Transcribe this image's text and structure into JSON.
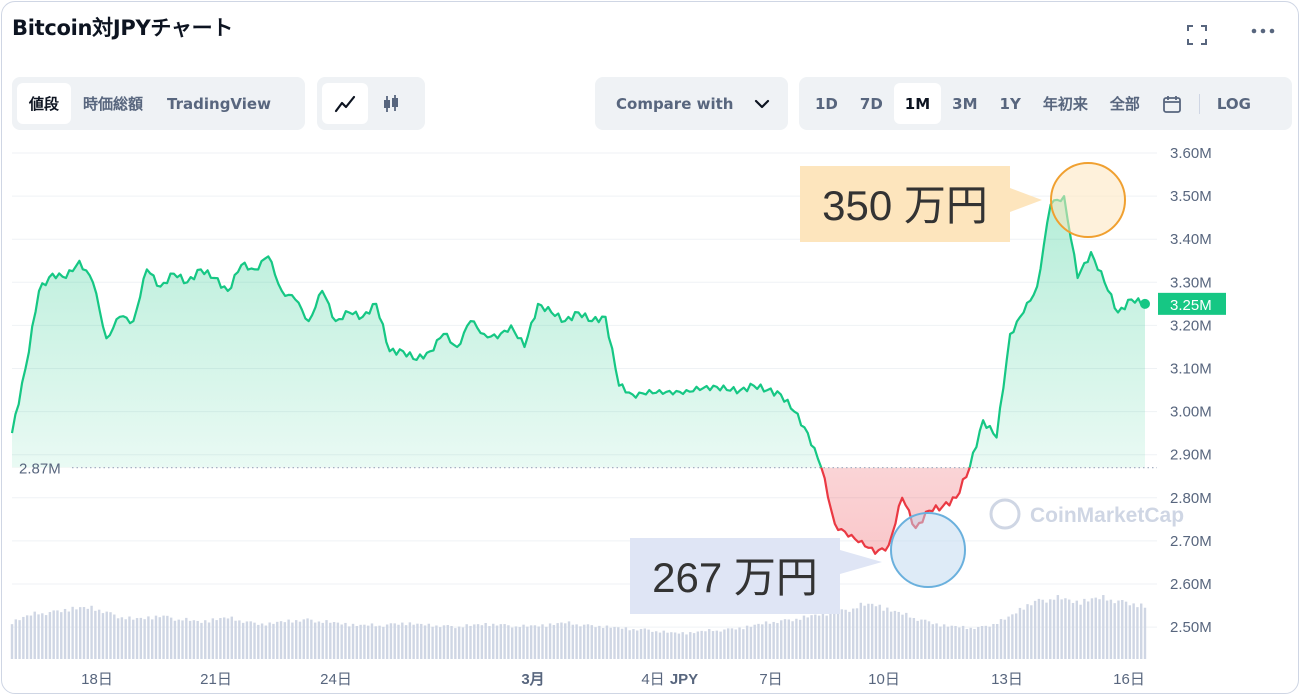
{
  "title": "Bitcoin対JPYチャート",
  "header_icons": {
    "fullscreen": "fullscreen-icon",
    "more": "more-icon"
  },
  "view_tabs": [
    "値段",
    "時価総額",
    "TradingView"
  ],
  "active_view": "値段",
  "chart_type_icons": [
    "line-chart-icon",
    "candlestick-icon"
  ],
  "compare_label": "Compare with",
  "range_tabs": [
    "1D",
    "7D",
    "1M",
    "3M",
    "1Y",
    "年初来",
    "全部"
  ],
  "active_range": "1M",
  "calendar_icon": "calendar-icon",
  "log_label": "LOG",
  "watermark": "CoinMarketCap",
  "colors": {
    "up": "#16c784",
    "down": "#ea3943",
    "grid": "#eff2f5",
    "text": "#58667e"
  },
  "chart_data": {
    "type": "line",
    "currency": "JPY",
    "y_axis_ticks": [
      "3.60M",
      "3.50M",
      "3.40M",
      "3.30M",
      "3.20M",
      "3.10M",
      "3.00M",
      "2.90M",
      "2.80M",
      "2.70M",
      "2.60M",
      "2.50M"
    ],
    "ylim": [
      2.45,
      3.63
    ],
    "x_axis_ticks": [
      "18日",
      "21日",
      "24日",
      "3月",
      "4日",
      "7日",
      "10日",
      "13日",
      "16日"
    ],
    "x_axis_currency_label": "JPY",
    "baseline_label": "2.87M",
    "baseline_value": 2.87,
    "current_price_label": "3.25M",
    "current_price": 3.25,
    "annotations": [
      {
        "label": "350 万円",
        "value": 3.5,
        "kind": "high"
      },
      {
        "label": "267 万円",
        "value": 2.67,
        "kind": "low"
      }
    ],
    "series": [
      {
        "values": [
          2.95,
          3.1,
          3.28,
          3.32,
          3.31,
          3.35,
          3.3,
          3.17,
          3.22,
          3.21,
          3.33,
          3.29,
          3.32,
          3.3,
          3.33,
          3.31,
          3.28,
          3.34,
          3.33,
          3.36,
          3.28,
          3.26,
          3.21,
          3.28,
          3.21,
          3.23,
          3.22,
          3.25,
          3.14,
          3.14,
          3.12,
          3.14,
          3.18,
          3.15,
          3.21,
          3.18,
          3.17,
          3.2,
          3.15,
          3.25,
          3.23,
          3.21,
          3.23,
          3.21,
          3.22,
          3.06,
          3.04,
          3.04,
          3.05,
          3.04,
          3.05,
          3.05,
          3.06,
          3.05,
          3.05,
          3.06,
          3.05,
          3.04,
          3.0,
          2.95,
          2.87,
          2.74,
          2.71,
          2.7,
          2.67,
          2.69,
          2.8,
          2.73,
          2.77,
          2.78,
          2.8,
          2.87,
          2.98,
          2.94,
          3.18,
          3.23,
          3.29,
          3.48,
          3.5,
          3.31,
          3.37,
          3.3,
          3.23,
          3.26,
          3.25
        ]
      }
    ],
    "volume": [
      0.3,
      0.34,
      0.37,
      0.38,
      0.4,
      0.41,
      0.41,
      0.38,
      0.34,
      0.32,
      0.33,
      0.35,
      0.33,
      0.31,
      0.3,
      0.32,
      0.33,
      0.31,
      0.29,
      0.28,
      0.3,
      0.31,
      0.32,
      0.3,
      0.29,
      0.28,
      0.27,
      0.27,
      0.28,
      0.29,
      0.28,
      0.27,
      0.27,
      0.26,
      0.27,
      0.28,
      0.28,
      0.27,
      0.26,
      0.27,
      0.28,
      0.29,
      0.28,
      0.27,
      0.26,
      0.25,
      0.24,
      0.24,
      0.22,
      0.21,
      0.21,
      0.22,
      0.23,
      0.24,
      0.25,
      0.27,
      0.29,
      0.31,
      0.32,
      0.34,
      0.36,
      0.38,
      0.4,
      0.43,
      0.44,
      0.4,
      0.36,
      0.33,
      0.3,
      0.27,
      0.26,
      0.25,
      0.26,
      0.29,
      0.34,
      0.42,
      0.47,
      0.49,
      0.48,
      0.46,
      0.48,
      0.49,
      0.47,
      0.45,
      0.42
    ]
  }
}
